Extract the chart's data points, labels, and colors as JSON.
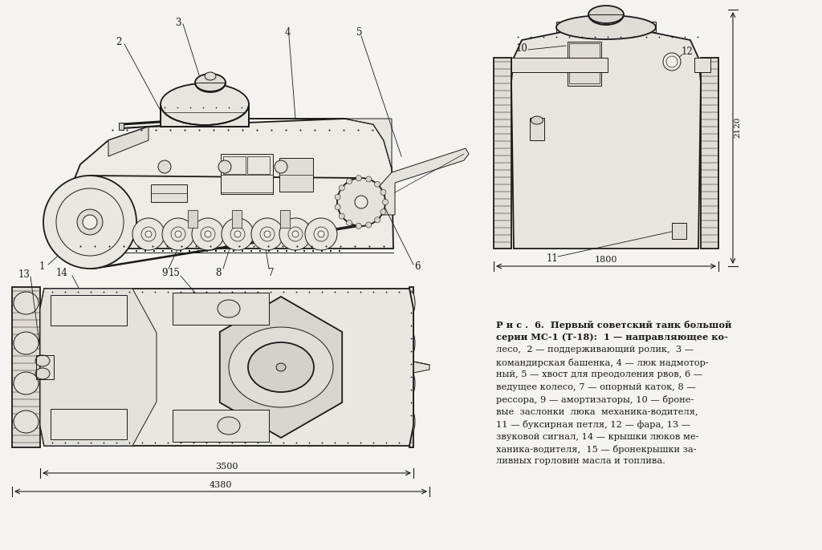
{
  "bg_color": "#f5f3ef",
  "line_color": "#1a1a1a",
  "fig_width": 10.24,
  "fig_height": 6.86,
  "dpi": 100,
  "caption_title": "Р и с .  6.  Первый советский танк большой",
  "caption_line1": "серии МС-1 (Т-18):  1 — направляющее ко-",
  "caption_line2": "лесо,  2 — поддерживающий ролик,  3 —",
  "caption_line3": "командирская башенка, 4 — люк надмотор-",
  "caption_line4": "ный, 5 — хвост для преодоления рвов, 6 —",
  "caption_line5": "ведущее колесо, 7 — опорный каток, 8 —",
  "caption_line6": "рессора, 9 — амортизаторы, 10 — броне-",
  "caption_line7": "вые  заслонки  люка  механика-водителя,",
  "caption_line8": "11 — буксирная петля, 12 — фара, 13 —",
  "caption_line9": "звуковой сигнал, 14 — крышки люков ме-",
  "caption_line10": "ханика-водителя,  15 — бронекрышки за-",
  "caption_line11": "ливных горловин масла и топлива.",
  "dim_1800": "1800",
  "dim_3500": "3500",
  "dim_4380": "4380",
  "dim_2120": "2120"
}
